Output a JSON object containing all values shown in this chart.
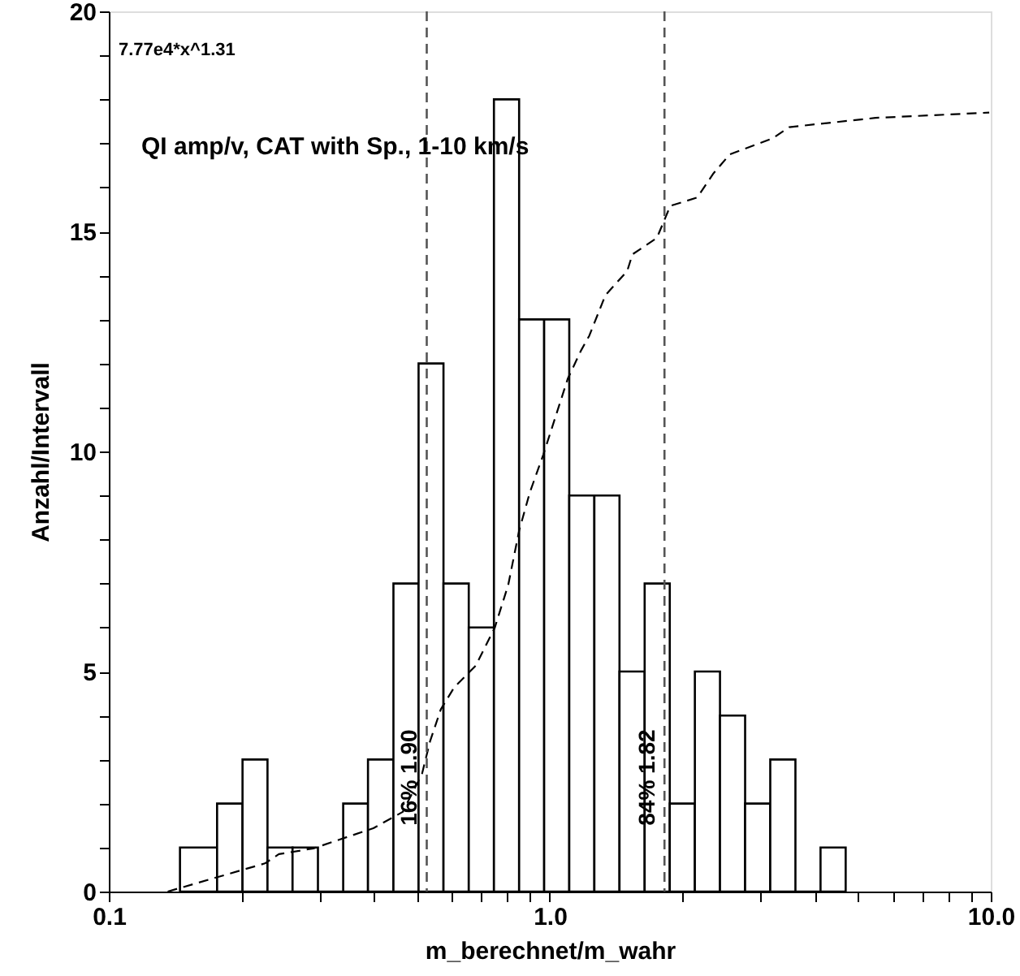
{
  "chart_data": {
    "type": "histogram",
    "xlabel": "m_berechnet/m_wahr",
    "ylabel": "Anzahl/Intervall",
    "annotations": [
      "7.77e4*x^1.31",
      "QI amp/v, CAT with Sp., 1-10 km/s",
      {
        "text": "16%  1.90",
        "x": 0.526,
        "y": 1.5
      },
      {
        "text": "84%  1.82",
        "x": 1.82,
        "y": 1.5
      }
    ],
    "bins": [
      0.145,
      0.176,
      0.201,
      0.229,
      0.261,
      0.298,
      0.34,
      0.387,
      0.442,
      0.504,
      0.574,
      0.655,
      0.747,
      0.852,
      0.971,
      1.107,
      1.262,
      1.439,
      1.641,
      1.871,
      2.133,
      2.432,
      2.773,
      3.162,
      3.606,
      4.111,
      4.688
    ],
    "values": [
      1,
      2,
      3,
      1,
      1,
      0,
      2,
      3,
      7,
      12,
      7,
      6,
      18,
      13,
      13,
      9,
      9,
      5,
      7,
      2,
      5,
      4,
      2,
      3,
      0,
      1
    ],
    "color": "#000000",
    "series": [
      {
        "type": "line",
        "color": "#000000",
        "line_style": "dashed",
        "x": [
          0.136,
          0.226,
          0.243,
          0.291,
          0.398,
          0.464,
          0.513,
          0.535,
          0.566,
          0.607,
          0.679,
          0.75,
          0.805,
          0.852,
          0.901,
          0.967,
          1.098,
          1.178,
          1.229,
          1.337,
          1.498,
          1.54,
          1.749,
          1.876,
          2.16,
          2.351,
          2.559,
          3.209,
          3.491,
          5.48,
          9.92
        ],
        "values": [
          0,
          0.64,
          0.85,
          0.98,
          1.44,
          1.81,
          2.67,
          3.41,
          4.14,
          4.64,
          5.13,
          5.99,
          6.97,
          8.2,
          9.07,
          9.93,
          11.65,
          12.3,
          12.63,
          13.55,
          14.1,
          14.48,
          14.85,
          15.58,
          15.77,
          16.32,
          16.75,
          17.12,
          17.37,
          17.58,
          17.7
        ]
      }
    ],
    "ref_lines": [
      {
        "axis": "x",
        "value": 0.526,
        "line_style": "dashed",
        "color": "#555555"
      },
      {
        "axis": "x",
        "value": 1.82,
        "line_style": "dashed",
        "color": "#555555"
      }
    ],
    "log": "x",
    "xlim": [
      0.1,
      10
    ],
    "ylim": [
      0,
      20
    ],
    "xticks": [
      0.1,
      {
        "value": 0.2,
        "label": null
      },
      {
        "value": 0.3,
        "label": null
      },
      {
        "value": 0.4,
        "label": null
      },
      {
        "value": 0.5,
        "label": null
      },
      {
        "value": 0.6,
        "label": null
      },
      {
        "value": 0.7,
        "label": null
      },
      {
        "value": 0.8,
        "label": null
      },
      {
        "value": 0.9,
        "label": null
      },
      {
        "value": 1,
        "label": "1.0"
      },
      {
        "value": 2,
        "label": null
      },
      {
        "value": 3,
        "label": null
      },
      {
        "value": 4,
        "label": null
      },
      {
        "value": 5,
        "label": null
      },
      {
        "value": 6,
        "label": null
      },
      {
        "value": 7,
        "label": null
      },
      {
        "value": 8,
        "label": null
      },
      {
        "value": 9,
        "label": null
      },
      {
        "value": 10,
        "label": "10.0"
      }
    ],
    "yticks": [
      0,
      {
        "value": 1,
        "label": null
      },
      {
        "value": 2,
        "label": null
      },
      {
        "value": 3,
        "label": null
      },
      {
        "value": 4,
        "label": null
      },
      5,
      {
        "value": 6,
        "label": null
      },
      {
        "value": 7,
        "label": null
      },
      {
        "value": 8,
        "label": null
      },
      {
        "value": 9,
        "label": null
      },
      10,
      {
        "value": 11,
        "label": null
      },
      {
        "value": 12,
        "label": null
      },
      {
        "value": 13,
        "label": null
      },
      {
        "value": 14,
        "label": null
      },
      15,
      {
        "value": 16,
        "label": null
      },
      {
        "value": 17,
        "label": null
      },
      {
        "value": 18,
        "label": null
      },
      {
        "value": 19,
        "label": null
      },
      20
    ],
    "grid": false
  }
}
